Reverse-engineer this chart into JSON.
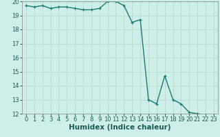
{
  "x": [
    0,
    1,
    2,
    3,
    4,
    5,
    6,
    7,
    8,
    9,
    10,
    11,
    12,
    13,
    14,
    15,
    16,
    17,
    18,
    19,
    20,
    21,
    22,
    23
  ],
  "y": [
    19.7,
    19.6,
    19.7,
    19.5,
    19.6,
    19.6,
    19.5,
    19.4,
    19.4,
    19.5,
    20.0,
    20.0,
    19.7,
    18.5,
    18.7,
    13.0,
    12.7,
    14.7,
    13.0,
    12.7,
    12.1,
    12.0,
    11.9,
    11.9
  ],
  "line_color": "#1a7a6e",
  "marker": "+",
  "markersize": 3.5,
  "linewidth": 1.0,
  "xlabel": "Humidex (Indice chaleur)",
  "xlim": [
    -0.5,
    23.5
  ],
  "ylim": [
    12,
    20
  ],
  "yticks": [
    12,
    13,
    14,
    15,
    16,
    17,
    18,
    19,
    20
  ],
  "xticks": [
    0,
    1,
    2,
    3,
    4,
    5,
    6,
    7,
    8,
    9,
    10,
    11,
    12,
    13,
    14,
    15,
    16,
    17,
    18,
    19,
    20,
    21,
    22,
    23
  ],
  "bg_color": "#ceeee8",
  "grid_color": "#b8d8d2",
  "xlabel_fontsize": 7.5,
  "tick_fontsize": 6.0
}
